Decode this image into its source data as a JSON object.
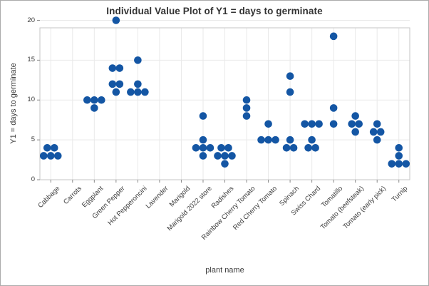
{
  "figure": {
    "title": "Individual Value Plot of Y1 = days to germinate",
    "x_axis_title": "plant name",
    "y_axis_title": "Y1 = days to germinate"
  },
  "chart_data": {
    "type": "scatter",
    "subtype": "individual-value-plot",
    "title": "Individual Value Plot of Y1 = days to germinate",
    "xlabel": "plant name",
    "ylabel": "Y1 = days to germinate",
    "ylim": [
      0,
      20
    ],
    "yticks": [
      0,
      5,
      10,
      15,
      20
    ],
    "grid": true,
    "legend": false,
    "point_color": "#1456A4",
    "categories": [
      "Cabbage",
      "Carrots",
      "Eggplant",
      "Green Pepper",
      "Hot Pepperoncini",
      "Lavender",
      "Marigold",
      "Marigold 2022 store",
      "Radishes",
      "Rainbow Cherry Tomato",
      "Red Cherry Tomato",
      "Spinach",
      "Swiss Chard",
      "Tomatillo",
      "Tomato (beefsteak)",
      "Tomato (early pick)",
      "Turnip"
    ],
    "series": [
      {
        "name": "Cabbage",
        "values": [
          4,
          4,
          3,
          3,
          3
        ]
      },
      {
        "name": "Carrots",
        "values": []
      },
      {
        "name": "Eggplant",
        "values": [
          10,
          10,
          10,
          9
        ]
      },
      {
        "name": "Green Pepper",
        "values": [
          20,
          14,
          14,
          12,
          12,
          11
        ]
      },
      {
        "name": "Hot Pepperoncini",
        "values": [
          15,
          12,
          11,
          11,
          11
        ]
      },
      {
        "name": "Lavender",
        "values": []
      },
      {
        "name": "Marigold",
        "values": []
      },
      {
        "name": "Marigold 2022 store",
        "values": [
          8,
          5,
          4,
          4,
          4,
          3
        ]
      },
      {
        "name": "Radishes",
        "values": [
          4,
          4,
          3,
          3,
          3,
          2
        ]
      },
      {
        "name": "Rainbow Cherry Tomato",
        "values": [
          10,
          9,
          8
        ]
      },
      {
        "name": "Red Cherry Tomato",
        "values": [
          7,
          5,
          5,
          5
        ]
      },
      {
        "name": "Spinach",
        "values": [
          13,
          11,
          5,
          4,
          4
        ]
      },
      {
        "name": "Swiss Chard",
        "values": [
          7,
          7,
          7,
          5,
          4,
          4
        ]
      },
      {
        "name": "Tomatillo",
        "values": [
          18,
          9,
          7
        ]
      },
      {
        "name": "Tomato (beefsteak)",
        "values": [
          8,
          7,
          7,
          6
        ]
      },
      {
        "name": "Tomato (early pick)",
        "values": [
          7,
          6,
          6,
          5
        ]
      },
      {
        "name": "Turnip",
        "values": [
          4,
          3,
          2,
          2,
          2
        ]
      }
    ]
  }
}
